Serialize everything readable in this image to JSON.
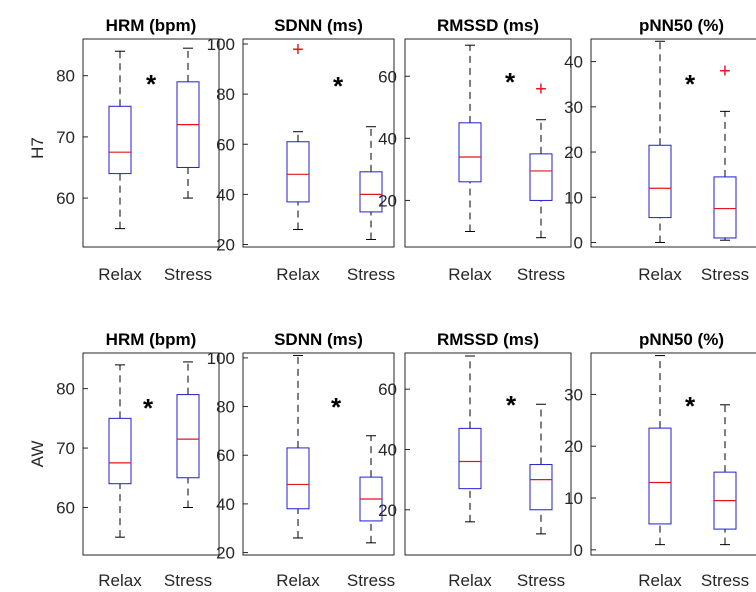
{
  "figure": {
    "row_labels": [
      "H7",
      "AW"
    ],
    "colors": {
      "box": "#1f1fd0",
      "median": "#e8141e",
      "outlier": "#e8141e",
      "whisker": "#000000",
      "axes": "#262626"
    },
    "significance_marker": "*",
    "outlier_marker": "+"
  },
  "chart_data": [
    {
      "type": "box",
      "row": "H7",
      "title": "HRM (bpm)",
      "categories": [
        "Relax",
        "Stress"
      ],
      "ylim": [
        52,
        86
      ],
      "yticks": [
        60,
        70,
        80
      ],
      "significant": true,
      "boxes": [
        {
          "min": 55,
          "q1": 64,
          "median": 67.5,
          "q3": 75,
          "max": 84,
          "outliers": []
        },
        {
          "min": 60,
          "q1": 65,
          "median": 72,
          "q3": 79,
          "max": 84.5,
          "outliers": []
        }
      ]
    },
    {
      "type": "box",
      "row": "H7",
      "title": "SDNN (ms)",
      "categories": [
        "Relax",
        "Stress"
      ],
      "ylim": [
        19,
        102
      ],
      "yticks": [
        20,
        40,
        60,
        80,
        100
      ],
      "significant": true,
      "boxes": [
        {
          "min": 26,
          "q1": 37,
          "median": 48,
          "q3": 61,
          "max": 65,
          "outliers": [
            98
          ]
        },
        {
          "min": 22,
          "q1": 33,
          "median": 40,
          "q3": 49,
          "max": 67,
          "outliers": []
        }
      ]
    },
    {
      "type": "box",
      "row": "H7",
      "title": "RMSSD (ms)",
      "categories": [
        "Relax",
        "Stress"
      ],
      "ylim": [
        5,
        72
      ],
      "yticks": [
        20,
        40,
        60
      ],
      "significant": true,
      "boxes": [
        {
          "min": 10,
          "q1": 26,
          "median": 34,
          "q3": 45,
          "max": 70,
          "outliers": []
        },
        {
          "min": 8,
          "q1": 20,
          "median": 29.5,
          "q3": 35,
          "max": 46,
          "outliers": [
            56
          ]
        }
      ]
    },
    {
      "type": "box",
      "row": "H7",
      "title": "pNN50 (%)",
      "categories": [
        "Relax",
        "Stress"
      ],
      "ylim": [
        -1,
        45
      ],
      "yticks": [
        0,
        10,
        20,
        30,
        40
      ],
      "significant": true,
      "boxes": [
        {
          "min": 0,
          "q1": 5.5,
          "median": 12,
          "q3": 21.5,
          "max": 44.5,
          "outliers": []
        },
        {
          "min": 0.5,
          "q1": 1,
          "median": 7.5,
          "q3": 14.5,
          "max": 29,
          "outliers": [
            38
          ]
        }
      ]
    },
    {
      "type": "box",
      "row": "AW",
      "title": "HRM (bpm)",
      "categories": [
        "Relax",
        "Stress"
      ],
      "ylim": [
        52,
        86
      ],
      "yticks": [
        60,
        70,
        80
      ],
      "significant": true,
      "boxes": [
        {
          "min": 55,
          "q1": 64,
          "median": 67.5,
          "q3": 75,
          "max": 84,
          "outliers": []
        },
        {
          "min": 60,
          "q1": 65,
          "median": 71.5,
          "q3": 79,
          "max": 84.5,
          "outliers": []
        }
      ]
    },
    {
      "type": "box",
      "row": "AW",
      "title": "SDNN (ms)",
      "categories": [
        "Relax",
        "Stress"
      ],
      "ylim": [
        19,
        102
      ],
      "yticks": [
        20,
        40,
        60,
        80,
        100
      ],
      "significant": true,
      "boxes": [
        {
          "min": 26,
          "q1": 38,
          "median": 48,
          "q3": 63,
          "max": 101,
          "outliers": []
        },
        {
          "min": 24,
          "q1": 33,
          "median": 42,
          "q3": 51,
          "max": 68,
          "outliers": []
        }
      ]
    },
    {
      "type": "box",
      "row": "AW",
      "title": "RMSSD (ms)",
      "categories": [
        "Relax",
        "Stress"
      ],
      "ylim": [
        5,
        72
      ],
      "yticks": [
        20,
        40,
        60
      ],
      "significant": true,
      "boxes": [
        {
          "min": 16,
          "q1": 27,
          "median": 36,
          "q3": 47,
          "max": 71,
          "outliers": []
        },
        {
          "min": 12,
          "q1": 20,
          "median": 30,
          "q3": 35,
          "max": 55,
          "outliers": []
        }
      ]
    },
    {
      "type": "box",
      "row": "AW",
      "title": "pNN50 (%)",
      "categories": [
        "Relax",
        "Stress"
      ],
      "ylim": [
        -1,
        38
      ],
      "yticks": [
        0,
        10,
        20,
        30
      ],
      "significant": true,
      "boxes": [
        {
          "min": 1,
          "q1": 5,
          "median": 13,
          "q3": 23.5,
          "max": 37.5,
          "outliers": []
        },
        {
          "min": 1,
          "q1": 4,
          "median": 9.5,
          "q3": 15,
          "max": 28,
          "outliers": []
        }
      ]
    }
  ]
}
